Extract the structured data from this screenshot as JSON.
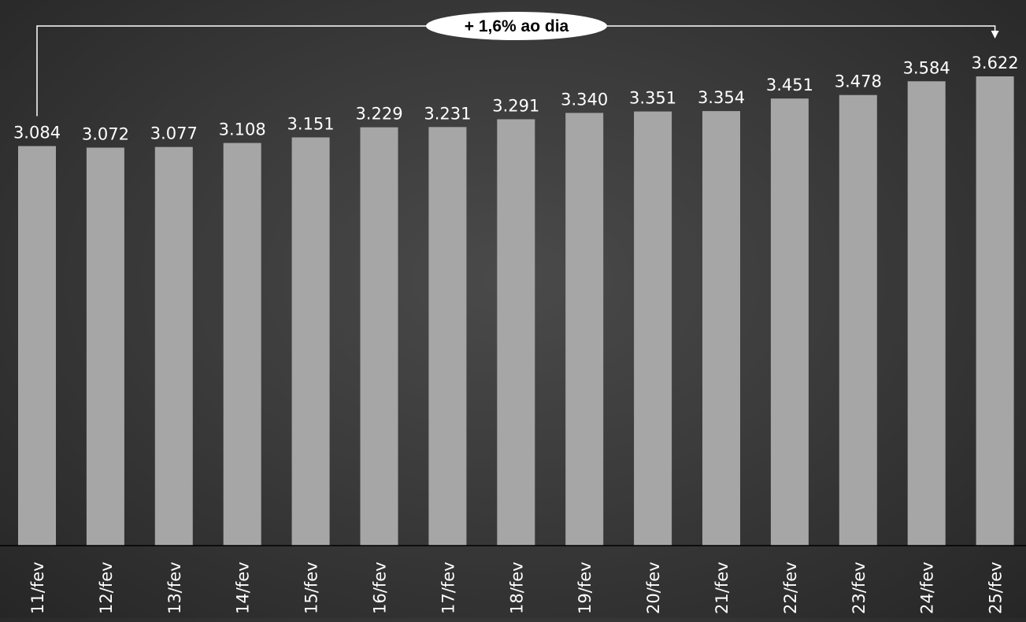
{
  "chart_data": {
    "type": "bar",
    "categories": [
      "11/fev",
      "12/fev",
      "13/fev",
      "14/fev",
      "15/fev",
      "16/fev",
      "17/fev",
      "18/fev",
      "19/fev",
      "20/fev",
      "21/fev",
      "22/fev",
      "23/fev",
      "24/fev",
      "25/fev"
    ],
    "values": [
      3084,
      3072,
      3077,
      3108,
      3151,
      3229,
      3231,
      3291,
      3340,
      3351,
      3354,
      3451,
      3478,
      3584,
      3622
    ],
    "value_labels": [
      "3.084",
      "3.072",
      "3.077",
      "3.108",
      "3.151",
      "3.229",
      "3.231",
      "3.291",
      "3.340",
      "3.351",
      "3.354",
      "3.451",
      "3.478",
      "3.584",
      "3.622"
    ],
    "annotation": "+ 1,6% ao dia",
    "ylim": [
      0,
      4200
    ],
    "grid": false,
    "colors": {
      "bar": "#a6a6a6",
      "text": "#ffffff",
      "annotation_bg": "#ffffff",
      "annotation_text": "#000000"
    }
  }
}
